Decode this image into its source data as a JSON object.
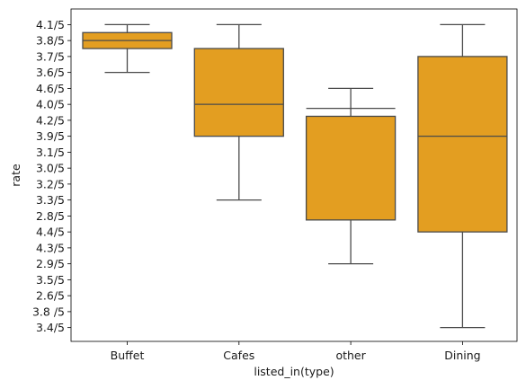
{
  "chart_data": {
    "type": "boxplot",
    "xlabel": "listed_in(type)",
    "ylabel": "rate",
    "categories": [
      "Buffet",
      "Cafes",
      "other",
      "Dining"
    ],
    "y_categories": [
      "4.1/5",
      "3.8/5",
      "3.7/5",
      "3.6/5",
      "4.6/5",
      "4.0/5",
      "4.2/5",
      "3.9/5",
      "3.1/5",
      "3.0/5",
      "3.2/5",
      "3.3/5",
      "2.8/5",
      "4.4/5",
      "4.3/5",
      "2.9/5",
      "3.5/5",
      "2.6/5",
      "3.8 /5",
      "3.4/5"
    ],
    "y_order": "top-to-bottom",
    "fill_color": "#e39e21",
    "line_color": "#4a4a4a",
    "grid": false,
    "boxes": [
      {
        "category": "Buffet",
        "whisker_low": "3.6/5",
        "q1": "3.7/5",
        "median": "3.8/5",
        "q3": "3.8/5",
        "whisker_high": "4.1/5",
        "box_low_index": 1.5,
        "median_index": 1.0,
        "box_high_index": 0.5
      },
      {
        "category": "Cafes",
        "whisker_low": "3.3/5",
        "q1": "3.9/5",
        "median": "4.0/5",
        "q3": "3.7/5",
        "whisker_high": "4.1/5",
        "box_low_index": 7.0,
        "median_index": 5.0,
        "box_high_index": 1.5
      },
      {
        "category": "other",
        "whisker_low": "2.9/5",
        "q1": "2.8/5",
        "median": "4.2/5",
        "q3": "4.2/5",
        "whisker_high": "4.6/5",
        "box_low_index": 12.25,
        "median_index": 5.25,
        "box_high_index": 5.75
      },
      {
        "category": "Dining",
        "whisker_low": "3.4/5",
        "q1": "4.4/5",
        "median": "3.9/5",
        "q3": "3.7/5",
        "whisker_high": "4.1/5",
        "box_low_index": 13.0,
        "median_index": 7.0,
        "box_high_index": 2.0
      }
    ]
  }
}
